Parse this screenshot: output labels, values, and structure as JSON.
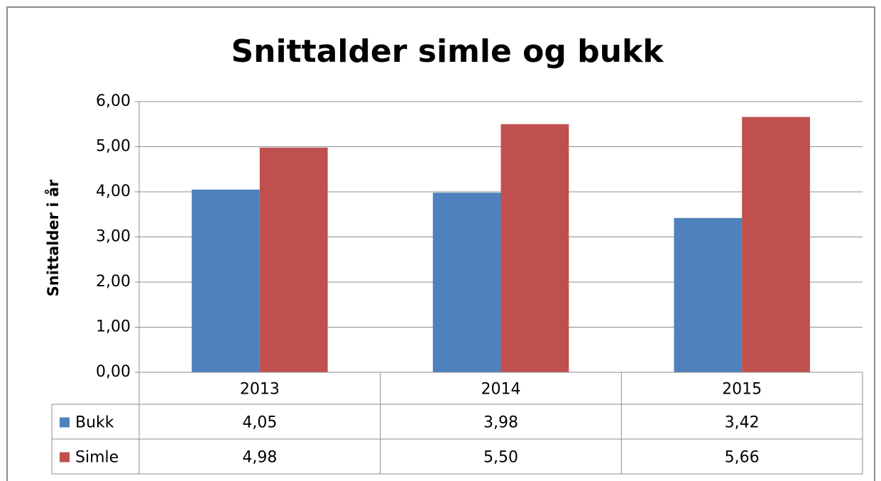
{
  "chart_data": {
    "type": "bar",
    "title": "Snittalder simle og bukk",
    "y_label": "Snittalder i år",
    "categories": [
      "2013",
      "2014",
      "2015"
    ],
    "series": [
      {
        "name": "Bukk",
        "color": "#4f81bd",
        "values": [
          4.05,
          3.98,
          3.42
        ],
        "value_labels": [
          "4,05",
          "3,98",
          "3,42"
        ]
      },
      {
        "name": "Simle",
        "color": "#c0504d",
        "values": [
          4.98,
          5.5,
          5.66
        ],
        "value_labels": [
          "4,98",
          "5,50",
          "5,66"
        ]
      }
    ],
    "ylim": [
      0,
      6
    ],
    "yticks": [
      {
        "value": 0,
        "label": "0,00"
      },
      {
        "value": 1,
        "label": "1,00"
      },
      {
        "value": 2,
        "label": "2,00"
      },
      {
        "value": 3,
        "label": "3,00"
      },
      {
        "value": 4,
        "label": "4,00"
      },
      {
        "value": 5,
        "label": "5,00"
      },
      {
        "value": 6,
        "label": "6,00"
      }
    ],
    "grid": true,
    "data_table": true
  }
}
